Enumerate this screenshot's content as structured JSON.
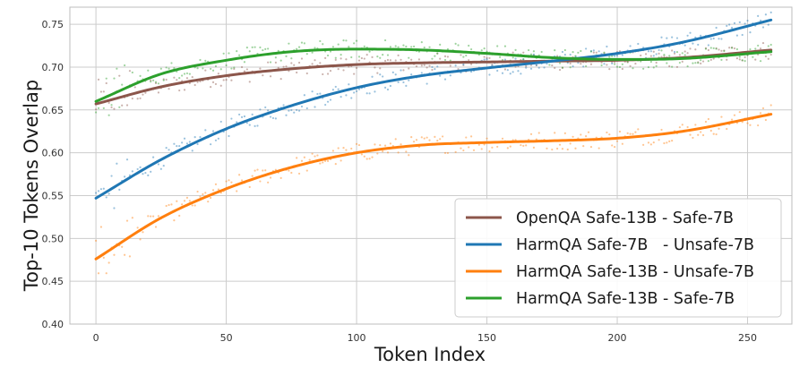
{
  "chart_data": {
    "type": "line",
    "title": "",
    "xlabel": "Token Index",
    "ylabel": "Top-10 Tokens Overlap",
    "xlim": [
      -10,
      267
    ],
    "ylim": [
      0.4,
      0.77
    ],
    "xticks": [
      0,
      50,
      100,
      150,
      200,
      250
    ],
    "yticks": [
      0.4,
      0.45,
      0.5,
      0.55,
      0.6,
      0.65,
      0.7,
      0.75
    ],
    "grid": true,
    "legend_position": "lower-right",
    "x": [
      0,
      25,
      50,
      75,
      100,
      125,
      150,
      175,
      200,
      225,
      259
    ],
    "series": [
      {
        "name": "OpenQA Safe-13B - Safe-7B",
        "color": "#8c564b",
        "values": [
          0.657,
          0.677,
          0.69,
          0.698,
          0.703,
          0.705,
          0.706,
          0.707,
          0.708,
          0.711,
          0.72
        ]
      },
      {
        "name": "HarmQA Safe-7B   - Unsafe-7B",
        "color": "#1f77b4",
        "values": [
          0.547,
          0.592,
          0.628,
          0.655,
          0.676,
          0.69,
          0.699,
          0.707,
          0.716,
          0.729,
          0.755
        ]
      },
      {
        "name": "HarmQA Safe-13B - Unsafe-7B",
        "color": "#ff7f0e",
        "values": [
          0.476,
          0.524,
          0.558,
          0.583,
          0.6,
          0.609,
          0.612,
          0.614,
          0.617,
          0.625,
          0.645
        ]
      },
      {
        "name": "HarmQA Safe-13B - Safe-7B",
        "color": "#2ca02c",
        "values": [
          0.66,
          0.692,
          0.708,
          0.718,
          0.721,
          0.72,
          0.716,
          0.711,
          0.709,
          0.71,
          0.718
        ]
      }
    ]
  }
}
